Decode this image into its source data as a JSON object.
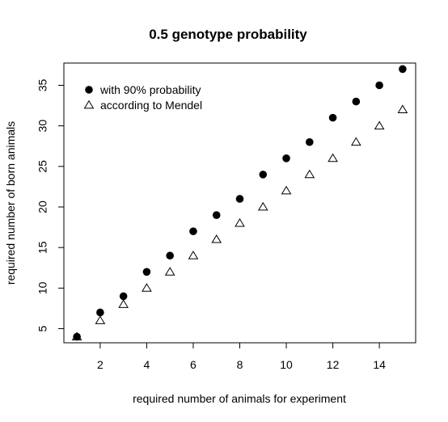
{
  "chart_data": {
    "type": "scatter",
    "title": "0.5 genotype probability",
    "xlabel": "required number of animals for experiment",
    "ylabel": "required number of born animals",
    "xlim": [
      0.44,
      15.56
    ],
    "ylim": [
      3.26,
      37.74
    ],
    "xticks": [
      2,
      4,
      6,
      8,
      10,
      12,
      14
    ],
    "yticks": [
      5,
      10,
      15,
      20,
      25,
      30,
      35
    ],
    "x": [
      1,
      2,
      3,
      4,
      5,
      6,
      7,
      8,
      9,
      10,
      11,
      12,
      13,
      14,
      15
    ],
    "series": [
      {
        "name": "with 90% probability",
        "marker": "filled-circle",
        "values": [
          4,
          7,
          9,
          12,
          14,
          17,
          19,
          21,
          24,
          26,
          28,
          31,
          33,
          35,
          37
        ]
      },
      {
        "name": "according to Mendel",
        "marker": "open-triangle",
        "values": [
          4,
          6,
          8,
          10,
          12,
          14,
          16,
          18,
          20,
          22,
          24,
          26,
          28,
          30,
          32
        ]
      }
    ],
    "legend_position": "top-left",
    "grid": false
  }
}
